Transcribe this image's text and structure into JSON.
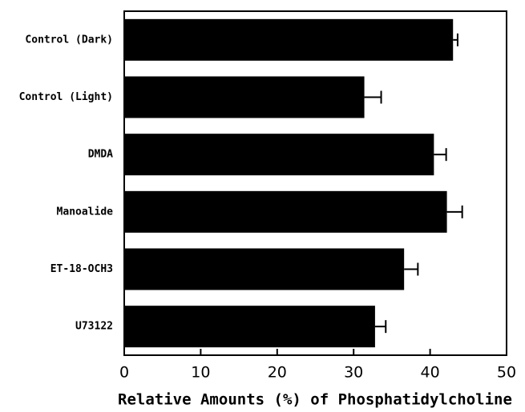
{
  "chart_data": {
    "type": "bar",
    "orientation": "horizontal",
    "x_label": "Relative Amounts (%) of Phosphatidylcholine",
    "categories": [
      "Control (Dark)",
      "Control (Light)",
      "DMDA",
      "Manoalide",
      "ET-18-OCH3",
      "U73122"
    ],
    "values": [
      43,
      31.4,
      40.5,
      42.2,
      36.6,
      32.8
    ],
    "errors": [
      0.6,
      2.2,
      1.6,
      2.0,
      1.8,
      1.4
    ],
    "color": "#000000",
    "xlim": [
      0,
      50
    ],
    "xticks": [
      0,
      10,
      20,
      30,
      40,
      50
    ]
  }
}
